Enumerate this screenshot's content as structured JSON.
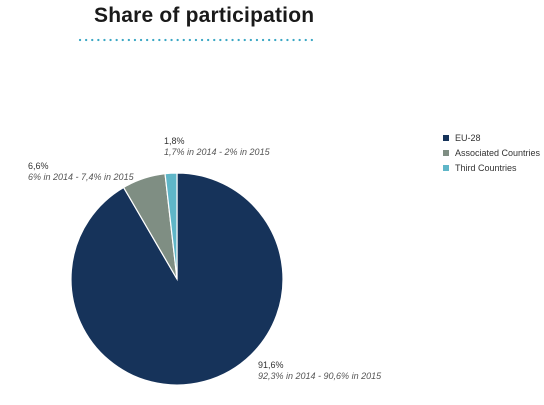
{
  "chart_data": {
    "type": "pie",
    "title": "Share of participation",
    "legend_position": "top-right",
    "slices": [
      {
        "label": "EU-28",
        "value": 91.6,
        "value_label": "91,6%",
        "detail": "92,3% in 2014 - 90,6% in 2015",
        "color": "#16335a"
      },
      {
        "label": "Associated Countries",
        "value": 6.6,
        "value_label": "6,6%",
        "detail": "6% in 2014 - 7,4% in 2015",
        "color": "#7f8e83"
      },
      {
        "label": "Third Countries",
        "value": 1.8,
        "value_label": "1,8%",
        "detail": "1,7% in 2014 - 2% in 2015",
        "color": "#5fb6c8"
      }
    ]
  }
}
